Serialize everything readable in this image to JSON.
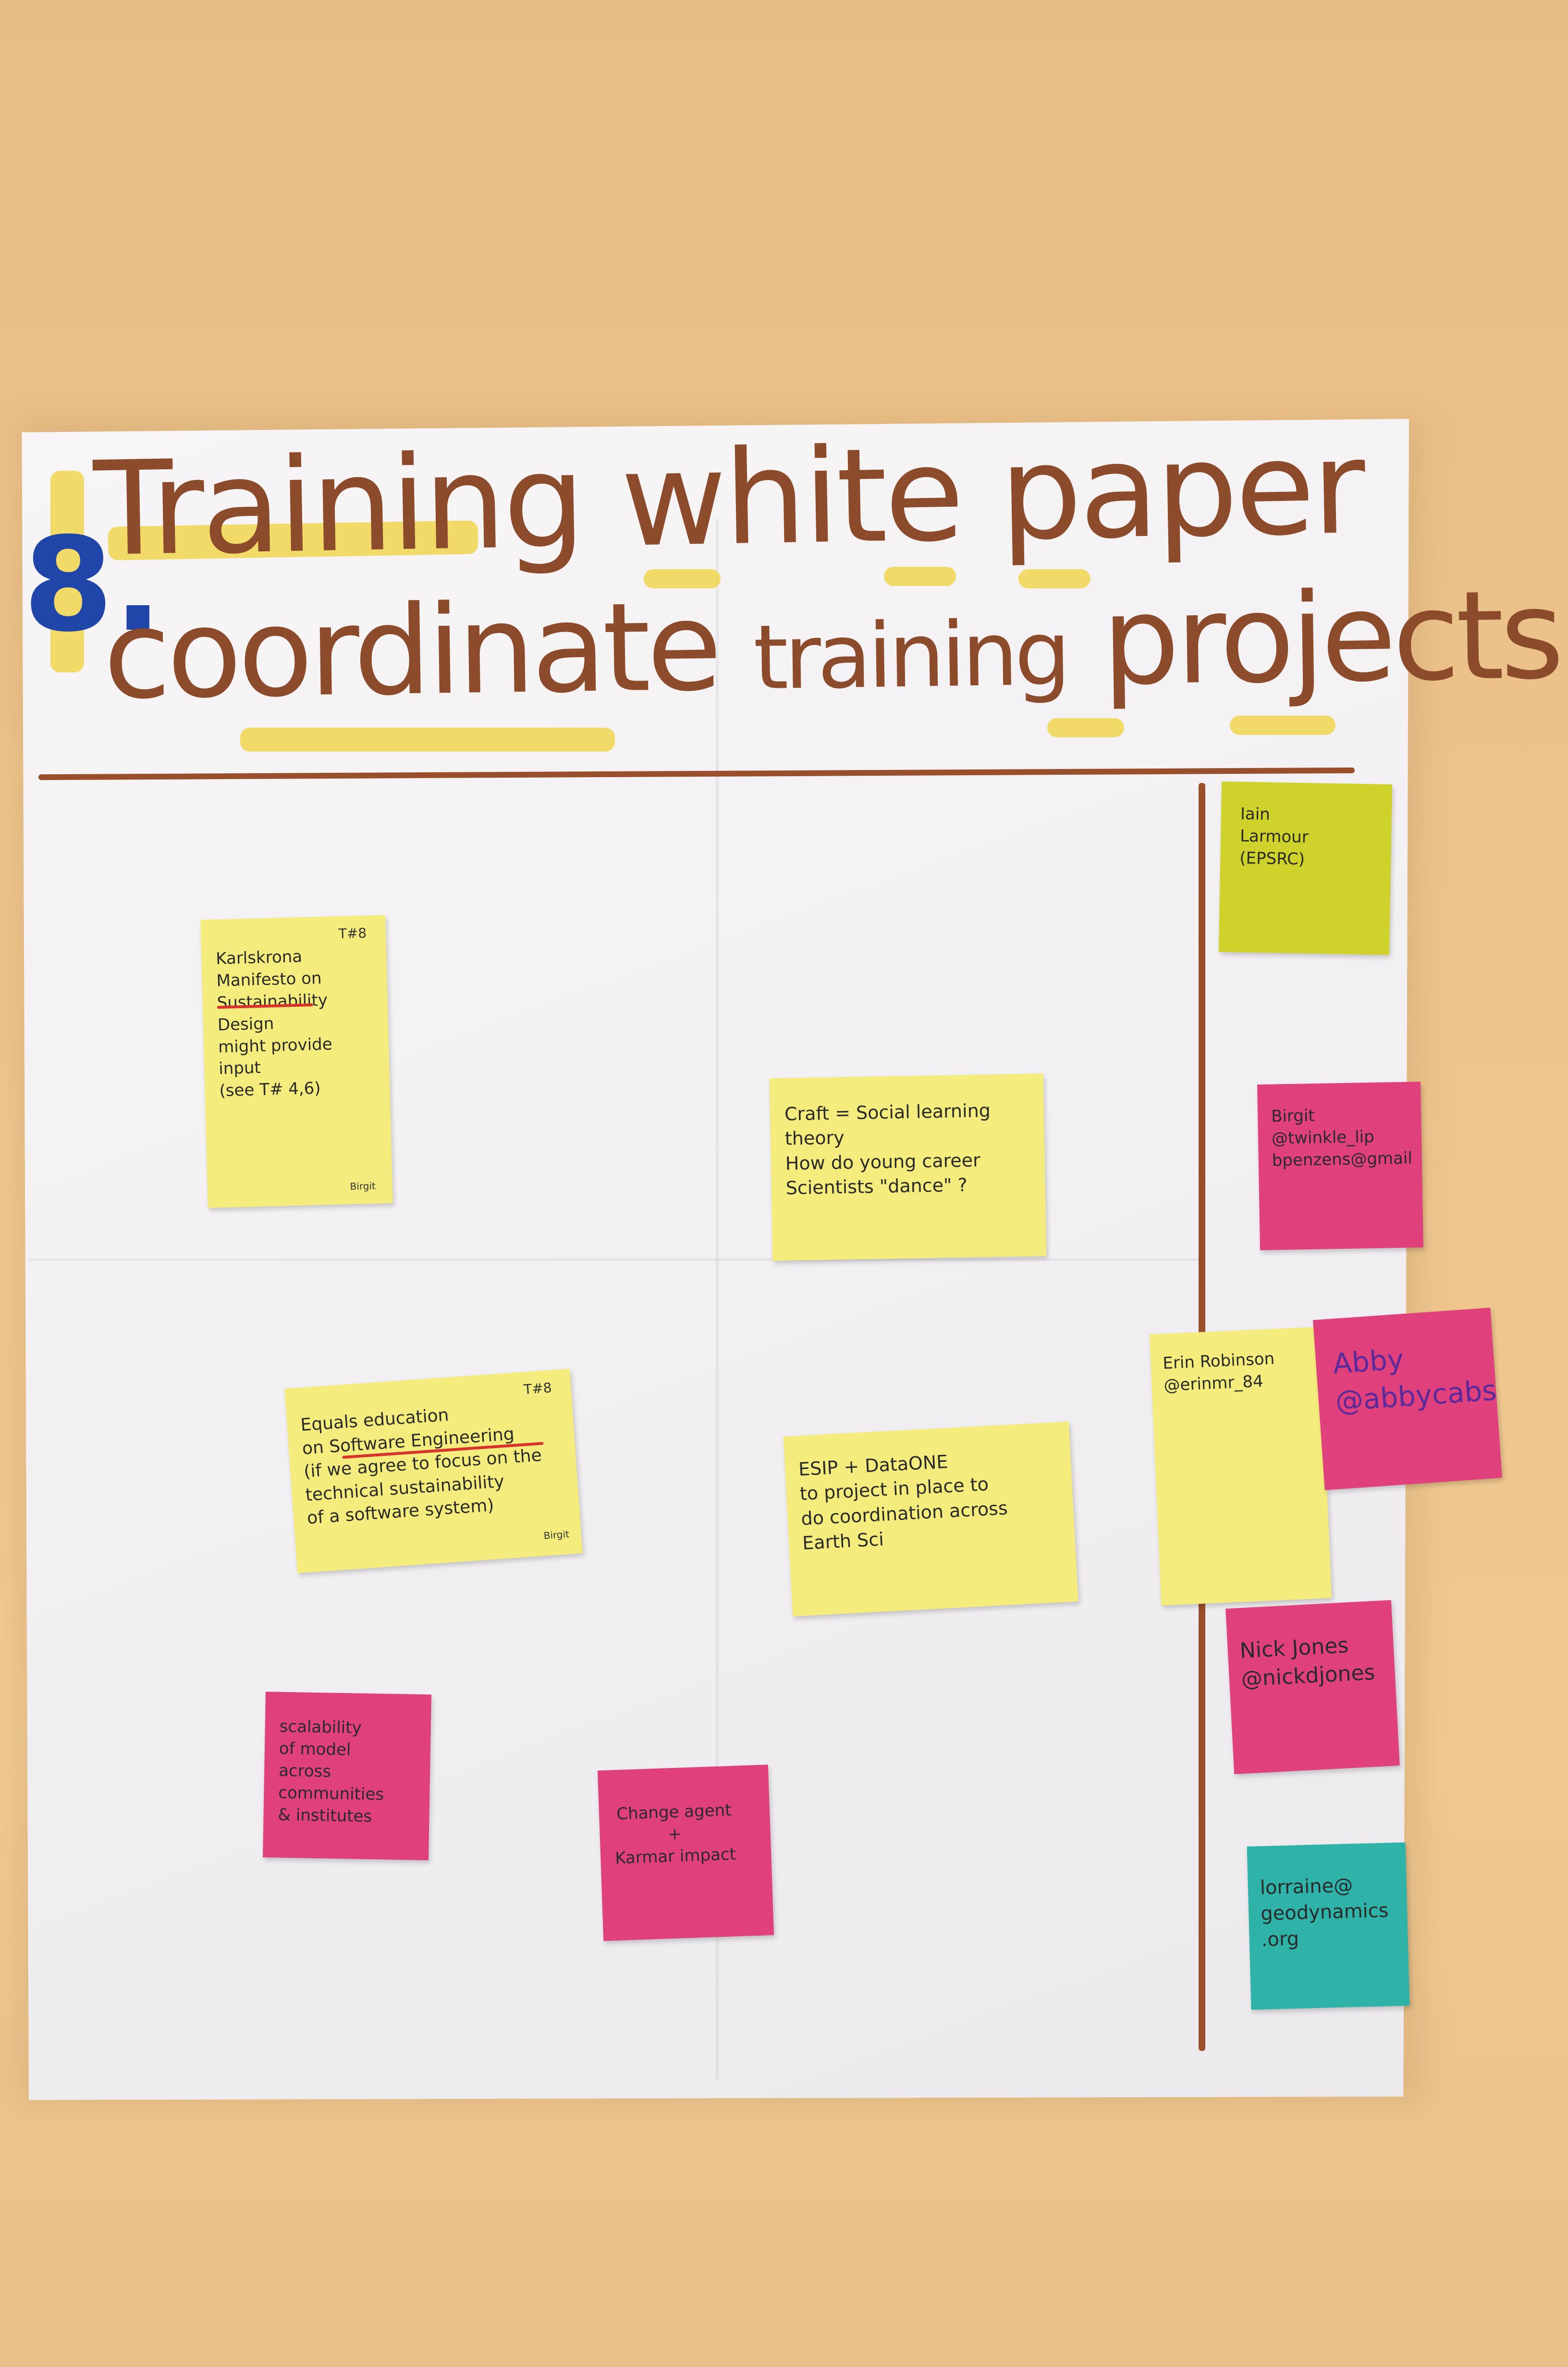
{
  "poster": {
    "number": "8.",
    "title_line1": "Training white paper",
    "title_line2_a": "coordinate",
    "title_line2_b": "training",
    "title_line2_c": "projects"
  },
  "notes": [
    {
      "id": "karlskrona",
      "text": "Karlskrona\nManifesto on\nSustainability\nDesign\nmight provide\ninput\n(see T# 4,6)",
      "tag": "T#8",
      "sig": "Birgit"
    },
    {
      "id": "craft",
      "text": "Craft = Social learning theory\nHow do young career\nScientists \"dance\" ?"
    },
    {
      "id": "equals",
      "text": "Equals education\non Software Engineering\n(if we agree to focus on the\ntechnical sustainability\nof a software system)",
      "tag": "T#8",
      "sig": "Birgit"
    },
    {
      "id": "esip",
      "text": "ESIP + DataONE\nto project in place to\ndo coordination across\nEarth Sci"
    },
    {
      "id": "scalability",
      "text": "scalability\nof model\nacross communities\n& institutes"
    },
    {
      "id": "change",
      "text": "Change agent\n+\nKarmar impact"
    },
    {
      "id": "iain",
      "text": "Iain\nLarmour\n(EPSRC)"
    },
    {
      "id": "birgit",
      "text": "Birgit\n@twinkle_lip\nbpenzens@gmail"
    },
    {
      "id": "erin",
      "text": "Erin Robinson\n@erinmr_84"
    },
    {
      "id": "abby",
      "text": "Abby\n@abbycabs"
    },
    {
      "id": "nick",
      "text": "Nick Jones\n@nickdjones"
    },
    {
      "id": "lorraine",
      "text": "lorraine@\ngeodynamics\n.org"
    }
  ],
  "colors": {
    "marker_brown": "#8c4b2a",
    "marker_blue": "#1f46a8",
    "highlighter": "#f0d23a",
    "sticky_yellow": "#f4ec7c",
    "sticky_lime": "#cfd22a",
    "sticky_pink": "#e0407c",
    "sticky_teal": "#2fb2a8"
  }
}
